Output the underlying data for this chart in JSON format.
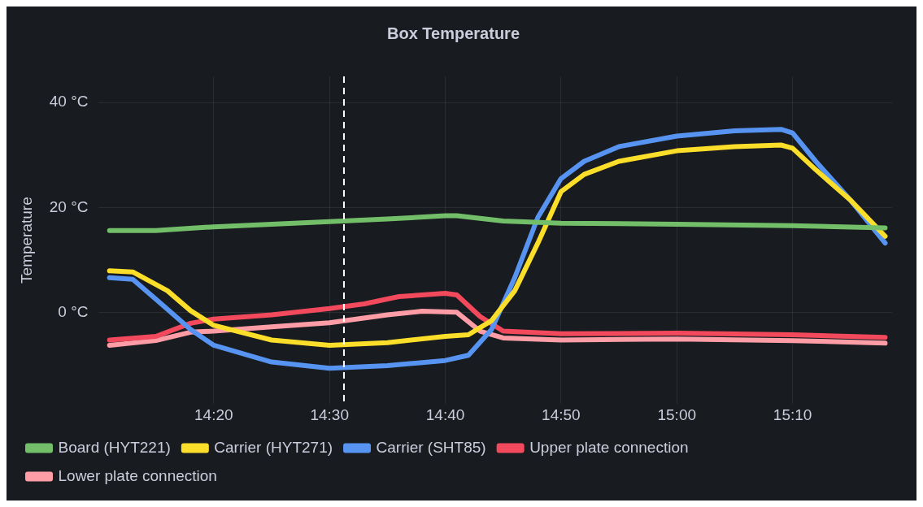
{
  "chart_data": {
    "type": "line",
    "title": "Box Temperature",
    "ylabel": "Temperature",
    "xlim": [
      14.1667,
      15.31
    ],
    "xticks": [
      {
        "value": 14.3333,
        "label": "14:20"
      },
      {
        "value": 14.5,
        "label": "14:30"
      },
      {
        "value": 14.6667,
        "label": "14:40"
      },
      {
        "value": 14.8333,
        "label": "14:50"
      },
      {
        "value": 15,
        "label": "15:00"
      },
      {
        "value": 15.1667,
        "label": "15:10"
      }
    ],
    "ylim": [
      -17.5,
      45
    ],
    "yticks": [
      {
        "value": 0,
        "label": "0 °C"
      },
      {
        "value": 20,
        "label": "20 °C"
      },
      {
        "value": 40,
        "label": "40 °C"
      }
    ],
    "grid": true,
    "legend": "bottom",
    "marker": "none",
    "line_style": "solid",
    "ref_lines": [
      {
        "axis": "x",
        "value": 14.5208,
        "label": null,
        "color": "#ffffff",
        "line_style": "dashed"
      }
    ],
    "series": [
      {
        "name": "Board (HYT221)",
        "color": "#73bf69",
        "x": [
          14.1833,
          14.25,
          14.3333,
          14.5,
          14.5833,
          14.6667,
          14.6833,
          14.75,
          14.8333,
          15,
          15.1667,
          15.3
        ],
        "values": [
          15.6,
          15.6,
          16.3,
          17.3,
          17.8,
          18.4,
          18.4,
          17.4,
          17,
          16.8,
          16.5,
          16.1
        ]
      },
      {
        "name": "Carrier (HYT271)",
        "color": "#fade2a",
        "x": [
          14.1833,
          14.2167,
          14.2667,
          14.3,
          14.3333,
          14.4167,
          14.5,
          14.5833,
          14.6667,
          14.7,
          14.7333,
          14.7667,
          14.8,
          14.8333,
          14.8667,
          14.9167,
          15,
          15.0833,
          15.15,
          15.1667,
          15.2,
          15.25,
          15.3
        ],
        "values": [
          7.9,
          7.7,
          4.1,
          0.3,
          -2.5,
          -5.3,
          -6.3,
          -5.8,
          -4.6,
          -4.3,
          -1.6,
          4.1,
          13.2,
          23,
          26.3,
          28.8,
          30.8,
          31.6,
          31.9,
          31.3,
          27.2,
          21.4,
          14.5
        ]
      },
      {
        "name": "Carrier (SHT85)",
        "color": "#5794f2",
        "x": [
          14.1833,
          14.2167,
          14.25,
          14.3,
          14.3333,
          14.4167,
          14.5,
          14.5833,
          14.6667,
          14.7,
          14.7333,
          14.7667,
          14.8,
          14.8333,
          14.8667,
          14.9167,
          15,
          15.0833,
          15.15,
          15.1667,
          15.2,
          15.25,
          15.3
        ],
        "values": [
          6.6,
          6.3,
          2.5,
          -3.3,
          -6.3,
          -9.5,
          -10.7,
          -10.2,
          -9.2,
          -8.2,
          -3.3,
          6.6,
          18.1,
          25.5,
          28.8,
          31.6,
          33.6,
          34.6,
          34.9,
          34.2,
          28.8,
          21.4,
          13.2
        ]
      },
      {
        "name": "Upper plate connection",
        "color": "#f2495c",
        "x": [
          14.1833,
          14.25,
          14.3,
          14.3333,
          14.4167,
          14.5,
          14.55,
          14.6,
          14.6667,
          14.6833,
          14.7167,
          14.75,
          14.8333,
          15,
          15.1667,
          15.3
        ],
        "values": [
          -5.3,
          -4.6,
          -2.1,
          -1.3,
          -0.5,
          0.7,
          1.6,
          3,
          3.6,
          3.3,
          -0.8,
          -3.6,
          -4.1,
          -4,
          -4.3,
          -4.8
        ]
      },
      {
        "name": "Lower plate connection",
        "color": "#ff9da7",
        "x": [
          14.1833,
          14.25,
          14.3,
          14.3333,
          14.4167,
          14.5,
          14.5833,
          14.6333,
          14.6833,
          14.7167,
          14.75,
          14.8333,
          15,
          15.1667,
          15.3
        ],
        "values": [
          -6.3,
          -5.4,
          -3.8,
          -3.6,
          -2.8,
          -2,
          -0.5,
          0.2,
          0,
          -3.6,
          -4.9,
          -5.3,
          -5.1,
          -5.4,
          -5.9
        ]
      }
    ]
  }
}
